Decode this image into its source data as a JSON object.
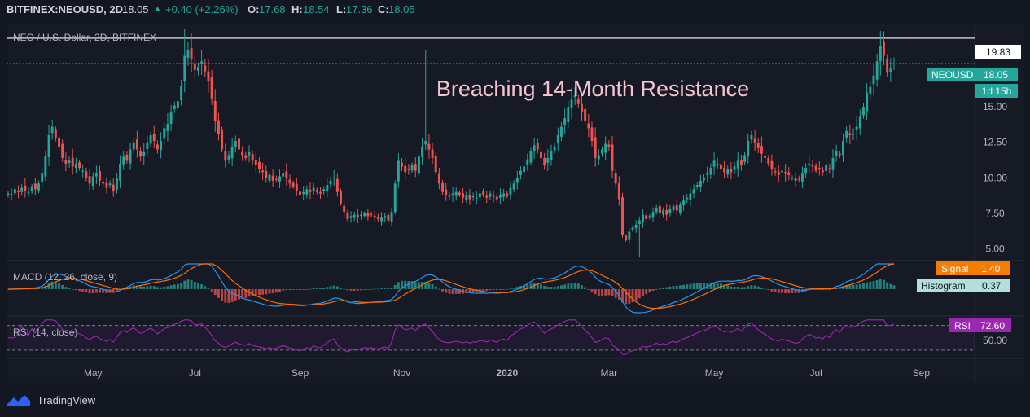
{
  "header": {
    "symbol": "BITFINEX:NEOUSD, 2D",
    "price": "18.05",
    "change_icon": "triangle-up-icon",
    "change": "+0.40 (+2.26%)",
    "o_label": "O:",
    "o_val": "17.68",
    "h_label": "H:",
    "h_val": "18.54",
    "l_label": "L:",
    "l_val": "17.36",
    "c_label": "C:",
    "c_val": "18.05",
    "accent": "#26a69a"
  },
  "footer": {
    "brand": "TradingView",
    "logo_icon": "tradingview-logo-icon"
  },
  "chart_data": [
    {
      "type": "candlestick",
      "title": "NEO / U.S. Dollar, 2D, BITFINEX",
      "annotation": "Breaching 14-Month Resistance",
      "resistance": {
        "value": 19.83,
        "label": "19.83"
      },
      "last_price": {
        "value": 18.05,
        "label": "NEOUSD",
        "value_label": "18.05",
        "countdown": "1d 15h"
      },
      "y_ticks": [
        "15.00",
        "12.50",
        "10.00",
        "7.50",
        "5.00"
      ],
      "y_tick_values": [
        15,
        12.5,
        10,
        7.5,
        5
      ],
      "ylim": [
        4.4,
        20.8
      ],
      "x_labels": [
        "May",
        "Jul",
        "Sep",
        "Nov",
        "2020",
        "Mar",
        "May",
        "Jul",
        "Sep"
      ],
      "x_label_idx": [
        25,
        55,
        86,
        116,
        147,
        177,
        208,
        238,
        269
      ],
      "close": [
        8.9,
        8.8,
        9.2,
        9.0,
        9.3,
        9.1,
        9.0,
        9.4,
        9.2,
        9.6,
        10.3,
        11.5,
        13.0,
        13.6,
        12.8,
        12.2,
        11.4,
        11.0,
        11.2,
        10.8,
        11.0,
        10.7,
        10.5,
        10.0,
        9.6,
        10.1,
        10.3,
        9.8,
        9.6,
        9.3,
        9.6,
        9.1,
        10.0,
        11.0,
        11.5,
        11.2,
        12.0,
        12.5,
        12.0,
        11.5,
        11.8,
        12.5,
        13.0,
        12.6,
        12.0,
        12.6,
        13.5,
        13.8,
        14.6,
        15.1,
        15.4,
        16.5,
        18.6,
        19.0,
        18.4,
        17.6,
        17.8,
        18.2,
        17.5,
        16.8,
        15.6,
        14.0,
        13.1,
        12.0,
        11.2,
        11.6,
        12.2,
        12.6,
        12.0,
        11.6,
        11.4,
        11.8,
        11.2,
        10.9,
        10.6,
        10.4,
        10.0,
        10.2,
        9.8,
        9.9,
        10.1,
        10.3,
        10.0,
        9.6,
        9.4,
        9.1,
        8.8,
        9.0,
        9.2,
        9.0,
        9.3,
        9.0,
        8.9,
        9.2,
        9.5,
        9.8,
        10.0,
        9.0,
        8.2,
        7.6,
        7.1,
        7.3,
        7.4,
        7.2,
        7.4,
        7.5,
        7.3,
        7.4,
        7.2,
        7.1,
        7.2,
        7.3,
        7.0,
        7.6,
        9.6,
        11.2,
        10.8,
        10.4,
        10.6,
        10.9,
        10.5,
        11.5,
        12.2,
        12.6,
        12.0,
        11.4,
        10.4,
        9.6,
        9.0,
        8.8,
        8.7,
        8.9,
        9.0,
        8.8,
        8.6,
        8.8,
        8.5,
        8.7,
        8.6,
        8.9,
        8.8,
        8.6,
        8.9,
        8.7,
        8.5,
        8.8,
        8.9,
        8.7,
        9.3,
        9.6,
        10.0,
        10.5,
        10.8,
        11.3,
        11.9,
        12.3,
        12.0,
        11.4,
        10.9,
        11.4,
        11.9,
        12.2,
        13.0,
        13.6,
        14.2,
        15.0,
        15.5,
        15.8,
        15.2,
        14.6,
        14.0,
        13.5,
        12.6,
        11.4,
        11.6,
        12.0,
        12.4,
        12.2,
        10.5,
        9.6,
        8.5,
        6.0,
        5.6,
        6.2,
        6.5,
        6.7,
        7.0,
        7.4,
        7.1,
        7.3,
        7.6,
        7.9,
        7.5,
        7.7,
        7.4,
        7.8,
        8.0,
        7.7,
        8.1,
        8.4,
        8.6,
        8.9,
        9.2,
        9.5,
        9.8,
        10.0,
        10.3,
        10.7,
        11.2,
        11.0,
        10.6,
        10.4,
        10.6,
        10.4,
        10.8,
        11.2,
        10.9,
        11.6,
        12.6,
        13.0,
        12.5,
        12.1,
        11.7,
        11.4,
        11.0,
        10.6,
        10.4,
        10.2,
        10.5,
        10.3,
        10.2,
        10.0,
        9.8,
        9.9,
        10.3,
        10.7,
        11.0,
        10.8,
        10.5,
        10.6,
        10.4,
        10.9,
        10.6,
        11.4,
        11.9,
        11.6,
        12.6,
        13.3,
        13.0,
        13.1,
        13.6,
        14.3,
        15.0,
        16.0,
        16.4,
        17.2,
        18.2,
        19.3,
        18.6,
        17.4,
        17.68,
        18.05
      ],
      "macd": {
        "title": "MACD (12, 26, close, 9)",
        "signal_label": "Signal",
        "signal_value": "1.40",
        "histogram_label": "Histogram",
        "histogram_value": "0.37",
        "ylim": [
          -1.5,
          1.6
        ]
      },
      "rsi": {
        "title": "RSI (14, close)",
        "label": "RSI",
        "value": "72.60",
        "tick": "50.00",
        "ylim": [
          22,
          80
        ]
      },
      "colors": {
        "up": "#26a69a",
        "down": "#ef5350",
        "macd_line": "#2196f3",
        "signal_line": "#ff6d00",
        "rsi_line": "#9c27b0",
        "annotation": "#f7c3d0",
        "signal_badge": "#f57c00",
        "histogram_badge": "#b2dfdb",
        "rsi_badge": "#9c27b0"
      }
    }
  ]
}
